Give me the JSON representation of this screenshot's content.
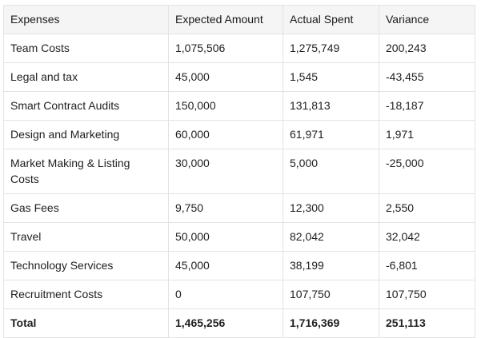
{
  "table": {
    "headers": [
      "Expenses",
      "Expected Amount",
      "Actual Spent",
      "Variance"
    ],
    "rows": [
      [
        "Team Costs",
        "1,075,506",
        "1,275,749",
        "200,243"
      ],
      [
        "Legal and tax",
        "45,000",
        "1,545",
        "-43,455"
      ],
      [
        "Smart Contract Audits",
        "150,000",
        "131,813",
        "-18,187"
      ],
      [
        "Design and Marketing",
        "60,000",
        "61,971",
        "1,971"
      ],
      [
        "Market Making & Listing Costs",
        "30,000",
        "5,000",
        "-25,000"
      ],
      [
        "Gas Fees",
        "9,750",
        "12,300",
        "2,550"
      ],
      [
        "Travel",
        "50,000",
        "82,042",
        "32,042"
      ],
      [
        "Technology Services",
        "45,000",
        "38,199",
        "-6,801"
      ],
      [
        "Recruitment Costs",
        "0",
        "107,750",
        "107,750"
      ]
    ],
    "total": [
      "Total",
      "1,465,256",
      "1,716,369",
      "251,113"
    ]
  }
}
